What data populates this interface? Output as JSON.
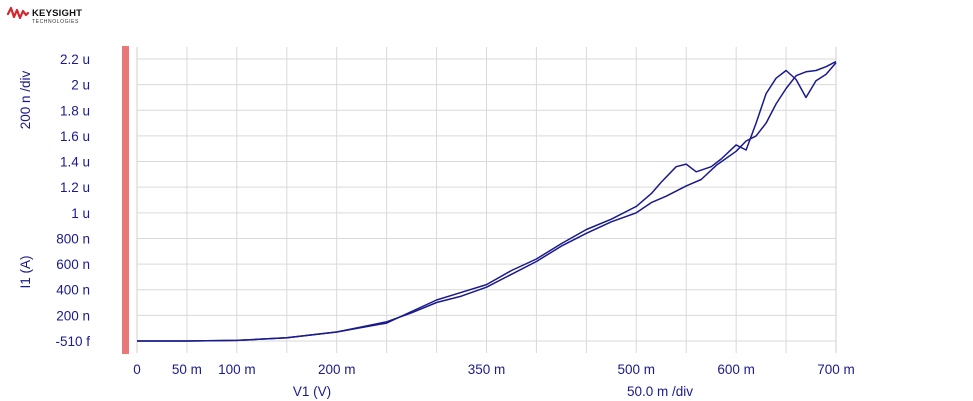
{
  "brand": {
    "name": "KEYSIGHT",
    "subtitle": "TECHNOLOGIES"
  },
  "chart_data": {
    "type": "line",
    "xlabel": "V1 (V)",
    "ylabel": "I1 (A)",
    "x_scale": "50.0 m /div",
    "y_scale": "200 n /div",
    "x_ticks": [
      {
        "v": 0,
        "label": "0"
      },
      {
        "v": 0.05,
        "label": "50 m"
      },
      {
        "v": 0.1,
        "label": "100 m"
      },
      {
        "v": 0.2,
        "label": "200 m"
      },
      {
        "v": 0.35,
        "label": "350 m"
      },
      {
        "v": 0.5,
        "label": "500 m"
      },
      {
        "v": 0.6,
        "label": "600 m"
      },
      {
        "v": 0.7,
        "label": "700 m"
      }
    ],
    "y_ticks": [
      {
        "v": -5.1e-13,
        "label": "-510 f"
      },
      {
        "v": 2e-07,
        "label": "200 n"
      },
      {
        "v": 4e-07,
        "label": "400 n"
      },
      {
        "v": 6e-07,
        "label": "600 n"
      },
      {
        "v": 8e-07,
        "label": "800 n"
      },
      {
        "v": 1e-06,
        "label": "1 u"
      },
      {
        "v": 1.2e-06,
        "label": "1.2 u"
      },
      {
        "v": 1.4e-06,
        "label": "1.4 u"
      },
      {
        "v": 1.6e-06,
        "label": "1.6 u"
      },
      {
        "v": 1.8e-06,
        "label": "1.8 u"
      },
      {
        "v": 2e-06,
        "label": "2 u"
      },
      {
        "v": 2.2e-06,
        "label": "2.2 u"
      }
    ],
    "xlim": [
      0,
      0.7
    ],
    "ylim": [
      -5.1e-13,
      2.2e-06
    ],
    "grid": true,
    "series_color": "#1a1a8c",
    "accent_color": "#e87878",
    "series": [
      {
        "x": [
          0,
          0.05,
          0.1,
          0.15,
          0.2,
          0.25,
          0.275,
          0.3,
          0.325,
          0.35,
          0.375,
          0.4,
          0.425,
          0.45,
          0.475,
          0.5,
          0.515,
          0.53,
          0.55,
          0.565,
          0.58,
          0.6,
          0.61,
          0.62,
          0.63,
          0.64,
          0.65,
          0.66,
          0.67,
          0.68,
          0.69,
          0.7
        ],
        "y": [
          0,
          0,
          5e-09,
          2.5e-08,
          7e-08,
          1.5e-07,
          2.2e-07,
          3e-07,
          3.5e-07,
          4.2e-07,
          5.2e-07,
          6.2e-07,
          7.4e-07,
          8.4e-07,
          9.3e-07,
          1e-06,
          1.08e-06,
          1.13e-06,
          1.21e-06,
          1.26e-06,
          1.37e-06,
          1.48e-06,
          1.56e-06,
          1.6e-06,
          1.7e-06,
          1.85e-06,
          1.97e-06,
          2.07e-06,
          2.1e-06,
          2.11e-06,
          2.14e-06,
          2.18e-06
        ]
      },
      {
        "x": [
          0,
          0.05,
          0.1,
          0.15,
          0.2,
          0.25,
          0.275,
          0.3,
          0.325,
          0.35,
          0.375,
          0.4,
          0.425,
          0.45,
          0.475,
          0.5,
          0.515,
          0.525,
          0.54,
          0.55,
          0.56,
          0.575,
          0.585,
          0.6,
          0.61,
          0.62,
          0.63,
          0.64,
          0.65,
          0.66,
          0.67,
          0.68,
          0.69,
          0.7
        ],
        "y": [
          0,
          0,
          5e-09,
          2.5e-08,
          7e-08,
          1.4e-07,
          2.3e-07,
          3.2e-07,
          3.8e-07,
          4.4e-07,
          5.5e-07,
          6.4e-07,
          7.6e-07,
          8.7e-07,
          9.5e-07,
          1.05e-06,
          1.15e-06,
          1.24e-06,
          1.36e-06,
          1.38e-06,
          1.32e-06,
          1.36e-06,
          1.42e-06,
          1.53e-06,
          1.49e-06,
          1.7e-06,
          1.93e-06,
          2.05e-06,
          2.11e-06,
          2.04e-06,
          1.9e-06,
          2.03e-06,
          2.08e-06,
          2.17e-06
        ]
      }
    ]
  }
}
